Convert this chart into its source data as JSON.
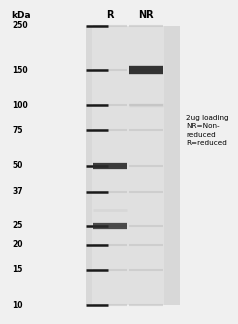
{
  "fig_bg": "#f0f0f0",
  "gel_bg": "#d8d8d8",
  "lane_bg": "#e0e0e0",
  "kda_label": "kDa",
  "col_labels": [
    "R",
    "NR"
  ],
  "annotation": "2ug loading\nNR=Non-\nreduced\nR=reduced",
  "mw_markers": [
    250,
    150,
    100,
    75,
    50,
    37,
    25,
    20,
    15,
    10
  ],
  "lane_R_bands": [
    {
      "mw": 50,
      "intensity": 0.9,
      "lw": 4.5
    },
    {
      "mw": 25,
      "intensity": 0.82,
      "lw": 4.5
    }
  ],
  "lane_NR_bands": [
    {
      "mw": 150,
      "intensity": 0.95,
      "lw": 6.0
    }
  ],
  "faint_NR_bands": [
    {
      "mw": 100,
      "intensity": 0.25,
      "lw": 2.5
    }
  ],
  "faint_R_bands": [
    {
      "mw": 30,
      "intensity": 0.18,
      "lw": 2.0
    }
  ],
  "marker_color": "#1a1a1a",
  "sample_color": "#2a2a2a",
  "faint_color": "#b0b0b0",
  "ladder_faint_color": "#c0c0c0",
  "mw_label_fontsize": 5.5,
  "col_label_fontsize": 7.0,
  "kda_fontsize": 6.5,
  "ann_fontsize": 5.2
}
